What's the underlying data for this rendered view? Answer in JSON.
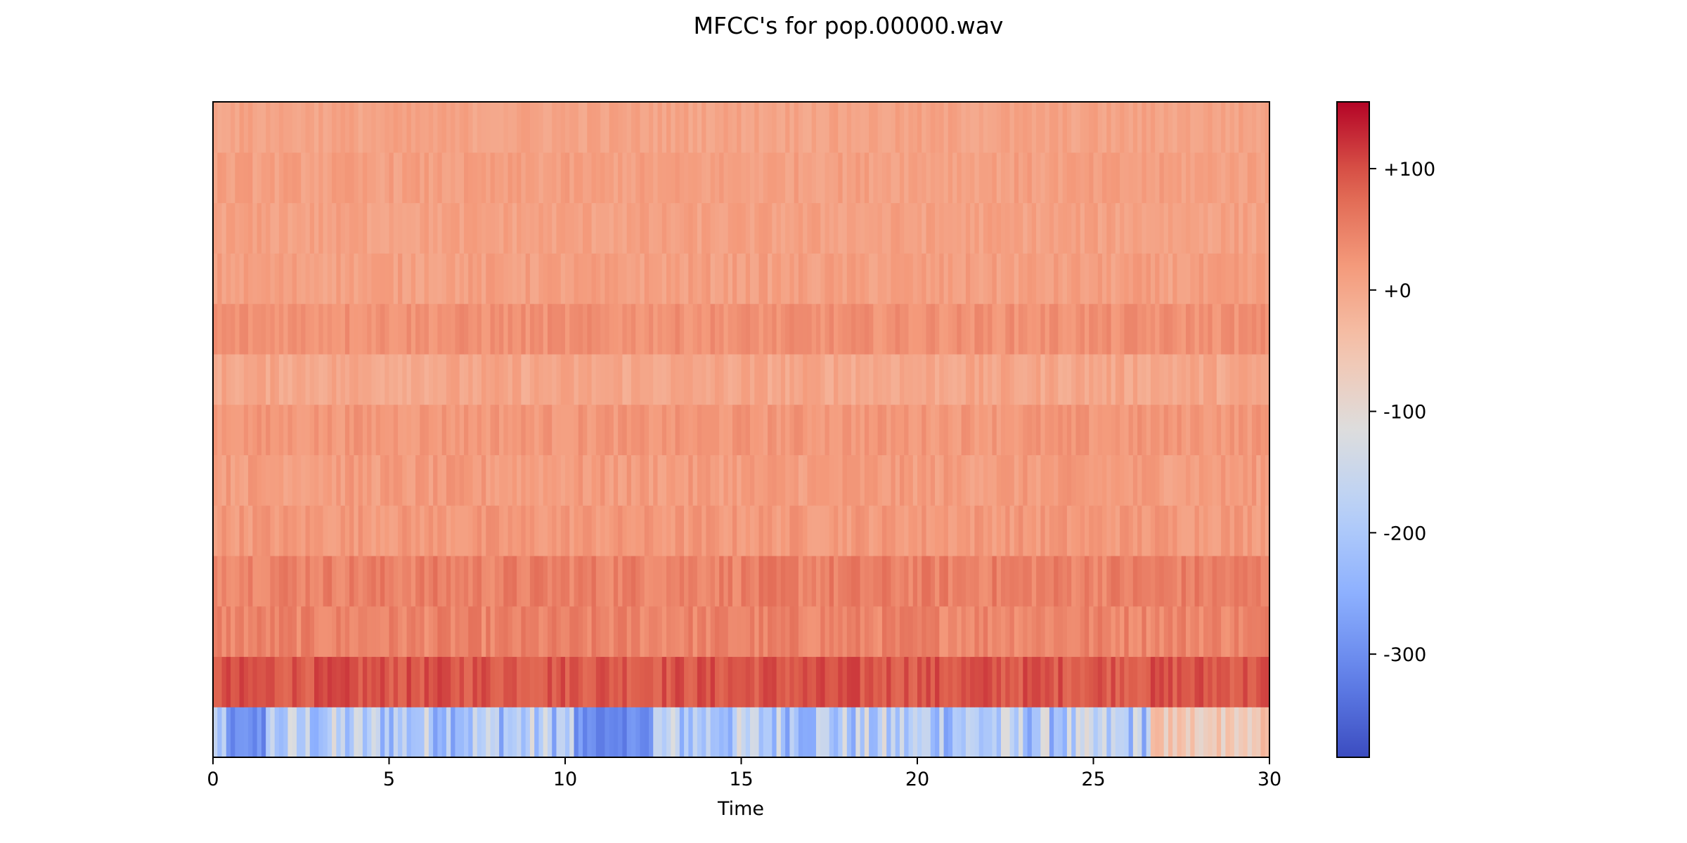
{
  "chart_data": {
    "type": "heatmap",
    "title": "MFCC's for pop.00000.wav",
    "xlabel": "Time",
    "ylabel": "",
    "xlim": [
      0,
      30
    ],
    "x_ticks": [
      0,
      5,
      10,
      15,
      20,
      25,
      30
    ],
    "x_tick_labels": [
      "0",
      "5",
      "10",
      "15",
      "20",
      "25",
      "30"
    ],
    "n_coefficients": 13,
    "n_frames": 240,
    "colormap": "coolwarm",
    "colorbar": {
      "range": [
        -385,
        155
      ],
      "ticks": [
        100,
        0,
        -100,
        -200,
        -300
      ],
      "tick_labels": [
        "+100",
        "+0",
        "-100",
        "-200",
        "-300"
      ]
    },
    "row_stats": [
      {
        "coefficient": 0,
        "mean": -190,
        "spread": 90
      },
      {
        "coefficient": 1,
        "mean": 95,
        "spread": 22
      },
      {
        "coefficient": 2,
        "mean": 45,
        "spread": 22
      },
      {
        "coefficient": 3,
        "mean": 50,
        "spread": 22
      },
      {
        "coefficient": 4,
        "mean": 20,
        "spread": 18
      },
      {
        "coefficient": 5,
        "mean": 15,
        "spread": 18
      },
      {
        "coefficient": 6,
        "mean": 22,
        "spread": 16
      },
      {
        "coefficient": 7,
        "mean": 0,
        "spread": 18
      },
      {
        "coefficient": 8,
        "mean": 30,
        "spread": 16
      },
      {
        "coefficient": 9,
        "mean": 10,
        "spread": 16
      },
      {
        "coefficient": 10,
        "mean": 8,
        "spread": 15
      },
      {
        "coefficient": 11,
        "mean": 10,
        "spread": 15
      },
      {
        "coefficient": 12,
        "mean": 5,
        "spread": 14
      }
    ],
    "grid": false
  }
}
